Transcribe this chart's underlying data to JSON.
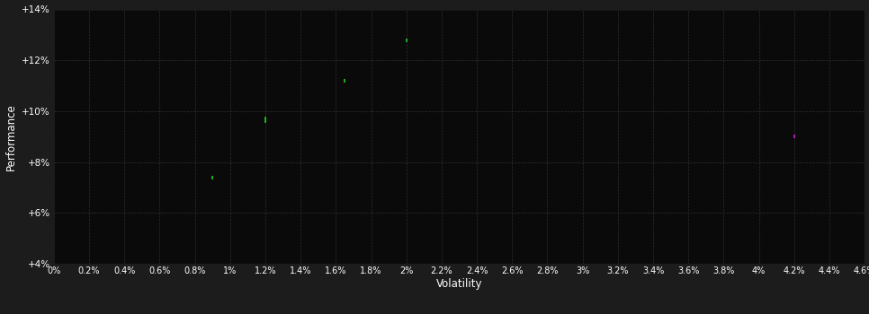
{
  "background_color": "#1c1c1c",
  "plot_bg_color": "#0a0a0a",
  "grid_color": "#2e2e2e",
  "text_color": "#ffffff",
  "green_points": [
    [
      0.009,
      0.074
    ],
    [
      0.012,
      0.097
    ],
    [
      0.012,
      0.096
    ],
    [
      0.0165,
      0.112
    ],
    [
      0.02,
      0.128
    ]
  ],
  "magenta_points": [
    [
      0.042,
      0.09
    ]
  ],
  "green_color": "#22cc22",
  "magenta_color": "#cc22cc",
  "xlabel": "Volatility",
  "ylabel": "Performance",
  "xlim": [
    0.0,
    0.046
  ],
  "ylim": [
    0.04,
    0.14
  ],
  "ytick_values": [
    0.04,
    0.06,
    0.08,
    0.1,
    0.12,
    0.14
  ],
  "figsize": [
    9.66,
    3.5
  ],
  "dpi": 100
}
